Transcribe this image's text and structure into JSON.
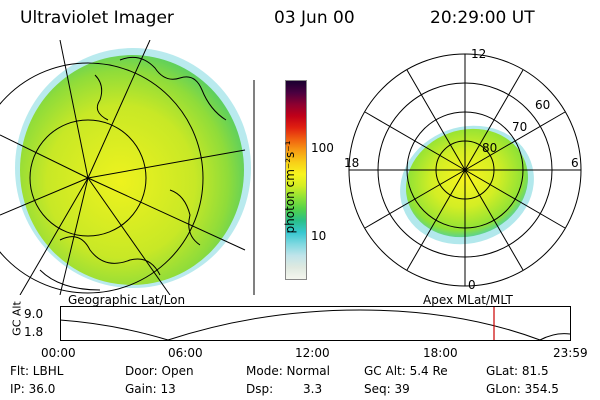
{
  "header": {
    "instrument": "Ultraviolet Imager",
    "date": "03 Jun 00",
    "time": "20:29:00 UT"
  },
  "colorbar": {
    "label": "photon cm⁻²s⁻¹",
    "ticks": [
      "100",
      "10"
    ],
    "colors": [
      "#f4f6ee",
      "#dfe9e0",
      "#c0e4ea",
      "#7fd8e0",
      "#37c7d0",
      "#2ac089",
      "#53d24a",
      "#8fe236",
      "#d4ee24",
      "#f8f41e",
      "#f8d018",
      "#f79d14",
      "#f06010",
      "#e02010",
      "#c00018",
      "#8c0030",
      "#4a0040",
      "#1a0030"
    ]
  },
  "geo_map": {
    "label": "Geographic Lat/Lon"
  },
  "polar_map": {
    "label": "Apex MLat/MLT",
    "mlt_labels": [
      "12",
      "18",
      "6",
      "0"
    ],
    "lat_labels": [
      "60",
      "70",
      "80"
    ]
  },
  "altitude_plot": {
    "ylabel": "GC Alt",
    "yticks": [
      "9.0",
      "1.8"
    ],
    "xticks": [
      "00:00",
      "06:00",
      "12:00",
      "18:00",
      "23:59"
    ],
    "marker_color": "#cc0000"
  },
  "info": {
    "flt": "Flt: LBHL",
    "door": "Door: Open",
    "mode": "Mode: Normal",
    "gcalt": "GC Alt: 5.4 Re",
    "glat": "GLat:  81.5",
    "ip": "IP: 36.0",
    "gain": "Gain: 13",
    "dsp_label": "Dsp:",
    "dsp_value": "3.3",
    "seq": "Seq: 39",
    "glon": "GLon: 354.5"
  }
}
